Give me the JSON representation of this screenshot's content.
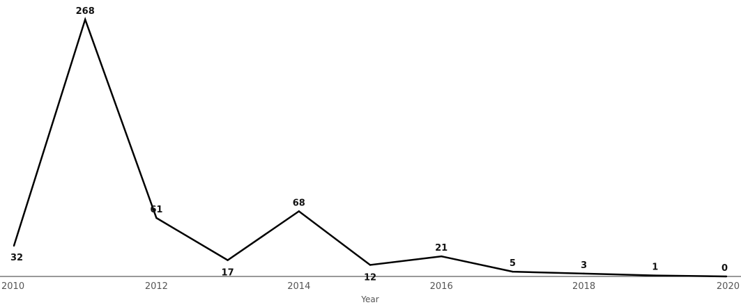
{
  "chart_data": {
    "type": "line",
    "xlabel": "Year",
    "ylabel": "",
    "x": [
      2010,
      2011,
      2012,
      2013,
      2014,
      2015,
      2016,
      2017,
      2018,
      2019,
      2020
    ],
    "values": [
      32,
      268,
      61,
      17,
      68,
      12,
      21,
      5,
      3,
      1,
      0
    ],
    "x_ticks": [
      "2010",
      "2012",
      "2014",
      "2016",
      "2018",
      "2020"
    ],
    "xlim": [
      2010,
      2020
    ],
    "ylim": [
      0,
      268
    ],
    "grid": false,
    "legend": "none",
    "line_color": "#000000"
  }
}
